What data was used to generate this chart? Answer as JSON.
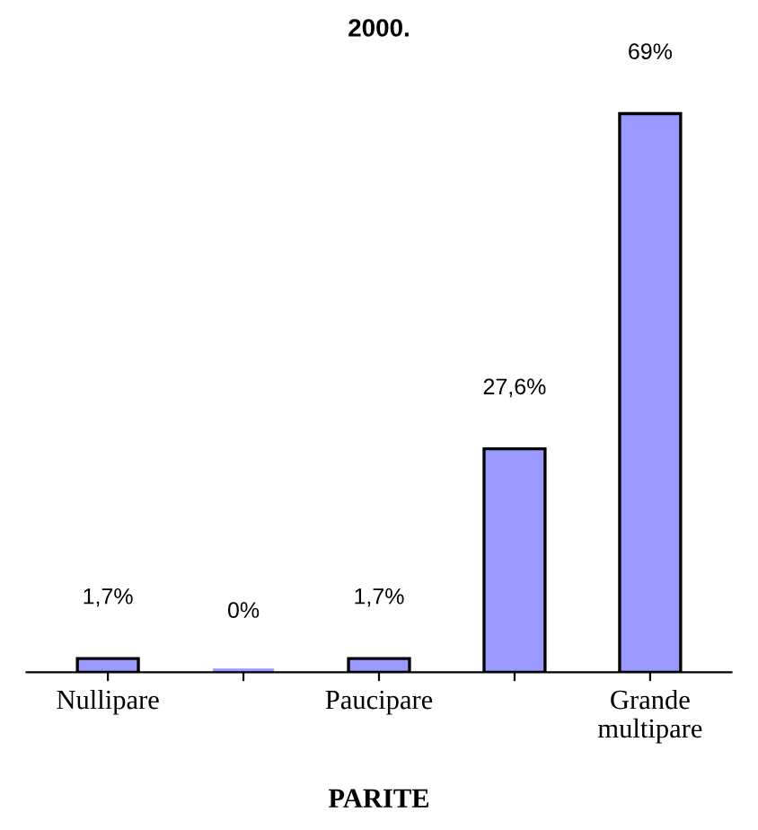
{
  "chart_data": {
    "type": "bar",
    "title": "2000.",
    "xlabel": "PARITE",
    "categories": [
      "Nullipare",
      null,
      "Paucipare",
      null,
      "Grande\nmultipare"
    ],
    "values": [
      1.7,
      0,
      1.7,
      27.6,
      69
    ],
    "value_labels": [
      "1,7%",
      "0%",
      "1,7%",
      "27,6%",
      "69%"
    ],
    "color": "#9999ff",
    "grid": false,
    "legend": false
  }
}
